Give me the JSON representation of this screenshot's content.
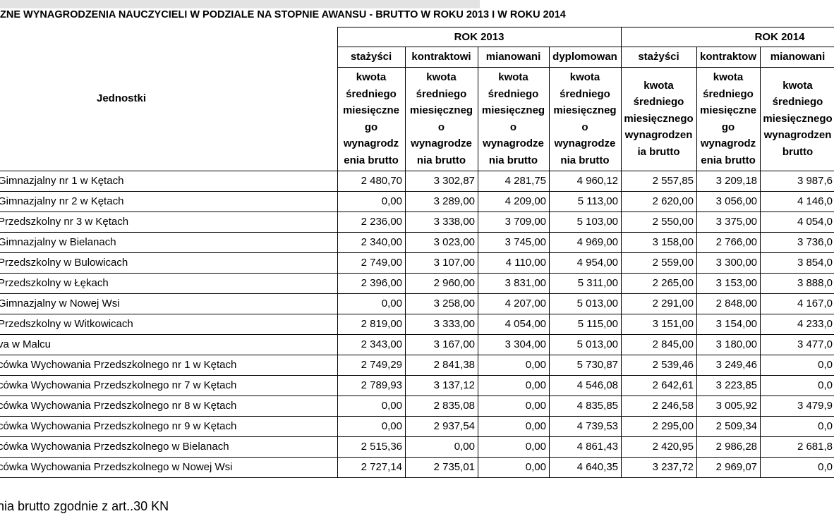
{
  "title": "ZNE WYNAGRODZENIA  NAUCZYCIELI W PODZIALE NA STOPNIE AWANSU - BRUTTO W ROKU 2013 I  W ROKU 2014",
  "table": {
    "corner": "Jednostki",
    "years": [
      "ROK 2013",
      "ROK 2014"
    ],
    "columns": [
      "stażyści",
      "kontraktowi",
      "mianowani",
      "dyplomowan",
      "stażyści",
      "kontraktow",
      "mianowani"
    ],
    "descriptions": [
      [
        "kwota",
        "średniego",
        "miesięczne",
        "go",
        "wynagrodz",
        "enia brutto"
      ],
      [
        "kwota",
        "średniego",
        "miesięczneg",
        "o",
        "wynagrodze",
        "nia brutto"
      ],
      [
        "kwota",
        "średniego",
        "miesięczneg",
        "o",
        "wynagrodze",
        "nia brutto"
      ],
      [
        "kwota",
        "średniego",
        "miesięczneg",
        "o",
        "wynagrodze",
        "nia brutto"
      ],
      [
        "kwota",
        "średniego",
        "miesięcznego",
        "wynagrodzen",
        "ia brutto"
      ],
      [
        "kwota",
        "średniego",
        "miesięczne",
        "go",
        "wynagrodz",
        "enia brutto"
      ],
      [
        "kwota",
        "średniego",
        "miesięcznego",
        "wynagrodzen",
        "brutto"
      ]
    ],
    "rows": [
      {
        "label": "Gimnazjalny nr 1 w Kętach",
        "values": [
          "2 480,70",
          "3 302,87",
          "4 281,75",
          "4 960,12",
          "2 557,85",
          "3 209,18",
          "3 987,6"
        ]
      },
      {
        "label": "Gimnazjalny nr 2 w Kętach",
        "values": [
          "0,00",
          "3 289,00",
          "4 209,00",
          "5 113,00",
          "2 620,00",
          "3 056,00",
          "4 146,0"
        ]
      },
      {
        "label": "Przedszkolny nr 3 w Kętach",
        "values": [
          "2 236,00",
          "3 338,00",
          "3 709,00",
          "5 103,00",
          "2 550,00",
          "3 375,00",
          "4 054,0"
        ]
      },
      {
        "label": "Gimnazjalny w Bielanach",
        "values": [
          "2 340,00",
          "3 023,00",
          "3 745,00",
          "4 969,00",
          "3 158,00",
          "2 766,00",
          "3 736,0"
        ]
      },
      {
        "label": "Przedszkolny w Bulowicach",
        "values": [
          "2 749,00",
          "3 107,00",
          "4 110,00",
          "4 954,00",
          "2 559,00",
          "3 300,00",
          "3 854,0"
        ]
      },
      {
        "label": "Przedszkolny w Łękach",
        "values": [
          "2 396,00",
          "2 960,00",
          "3 831,00",
          "5 311,00",
          "2 265,00",
          "3 153,00",
          "3 888,0"
        ]
      },
      {
        "label": "Gimnazjalny w Nowej Wsi",
        "values": [
          "0,00",
          "3 258,00",
          "4 207,00",
          "5 013,00",
          "2 291,00",
          "2 848,00",
          "4 167,0"
        ]
      },
      {
        "label": "Przedszkolny w Witkowicach",
        "values": [
          "2 819,00",
          "3 333,00",
          "4 054,00",
          "5 115,00",
          "3 151,00",
          "3 154,00",
          "4 233,0"
        ]
      },
      {
        "label": "va w Malcu",
        "values": [
          "2 343,00",
          "3 167,00",
          "3 304,00",
          "5 013,00",
          "2 845,00",
          "3 180,00",
          "3 477,0"
        ]
      },
      {
        "label": "cówka Wychowania Przedszkolnego nr 1 w Kętach",
        "values": [
          "2 749,29",
          "2 841,38",
          "0,00",
          "5 730,87",
          "2 539,46",
          "3 249,46",
          "0,0"
        ]
      },
      {
        "label": "cówka Wychowania Przedszkolnego nr 7 w Kętach",
        "values": [
          "2 789,93",
          "3 137,12",
          "0,00",
          "4 546,08",
          "2 642,61",
          "3 223,85",
          "0,0"
        ]
      },
      {
        "label": "cówka Wychowania Przedszkolnego nr 8 w Kętach",
        "values": [
          "0,00",
          "2 835,08",
          "0,00",
          "4 835,85",
          "2 246,58",
          "3 005,92",
          "3 479,9"
        ]
      },
      {
        "label": "cówka Wychowania Przedszkolnego nr 9 w Kętach",
        "values": [
          "0,00",
          "2 937,54",
          "0,00",
          "4 739,53",
          "2 295,00",
          "2 509,34",
          "0,0"
        ]
      },
      {
        "label": "cówka Wychowania Przedszkolnego w Bielanach",
        "values": [
          "2 515,36",
          "0,00",
          "0,00",
          "4 861,43",
          "2 420,95",
          "2 986,28",
          "2 681,8"
        ]
      },
      {
        "label": "cówka Wychowania Przedszkolnego w Nowej Wsi",
        "values": [
          "2 727,14",
          "2 735,01",
          "0,00",
          "4 640,35",
          "3 237,72",
          "2 969,07",
          "0,0"
        ]
      }
    ]
  },
  "footer": "nia brutto zgodnie z art..30 KN"
}
